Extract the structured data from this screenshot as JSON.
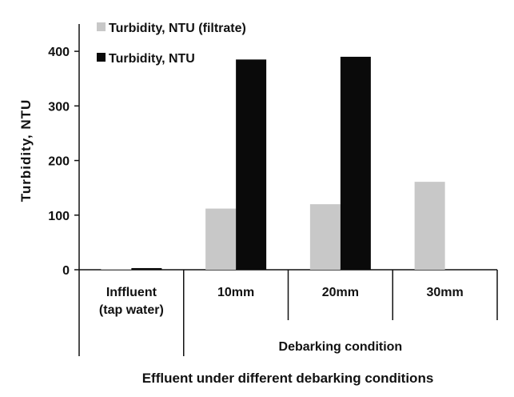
{
  "chart_data": {
    "type": "bar",
    "categories": [
      "Inffluent\n(tap water)",
      "10mm",
      "20mm",
      "30mm"
    ],
    "group_label": "Debarking condition",
    "group_categories": [
      "10mm",
      "20mm",
      "30mm"
    ],
    "xlabel": "Effluent under different debarking conditions",
    "ylabel": "Turbidity,  NTU",
    "ylim": [
      0,
      450
    ],
    "yticks": [
      0,
      100,
      200,
      300,
      400
    ],
    "legend_position": "top-left",
    "series": [
      {
        "name": "Turbidity, NTU (filtrate)",
        "color": "#c8c8c8",
        "values": [
          1,
          112,
          120,
          161
        ]
      },
      {
        "name": "Turbidity, NTU",
        "color": "#0a0a0a",
        "values": [
          3,
          385,
          390,
          null
        ]
      }
    ]
  }
}
